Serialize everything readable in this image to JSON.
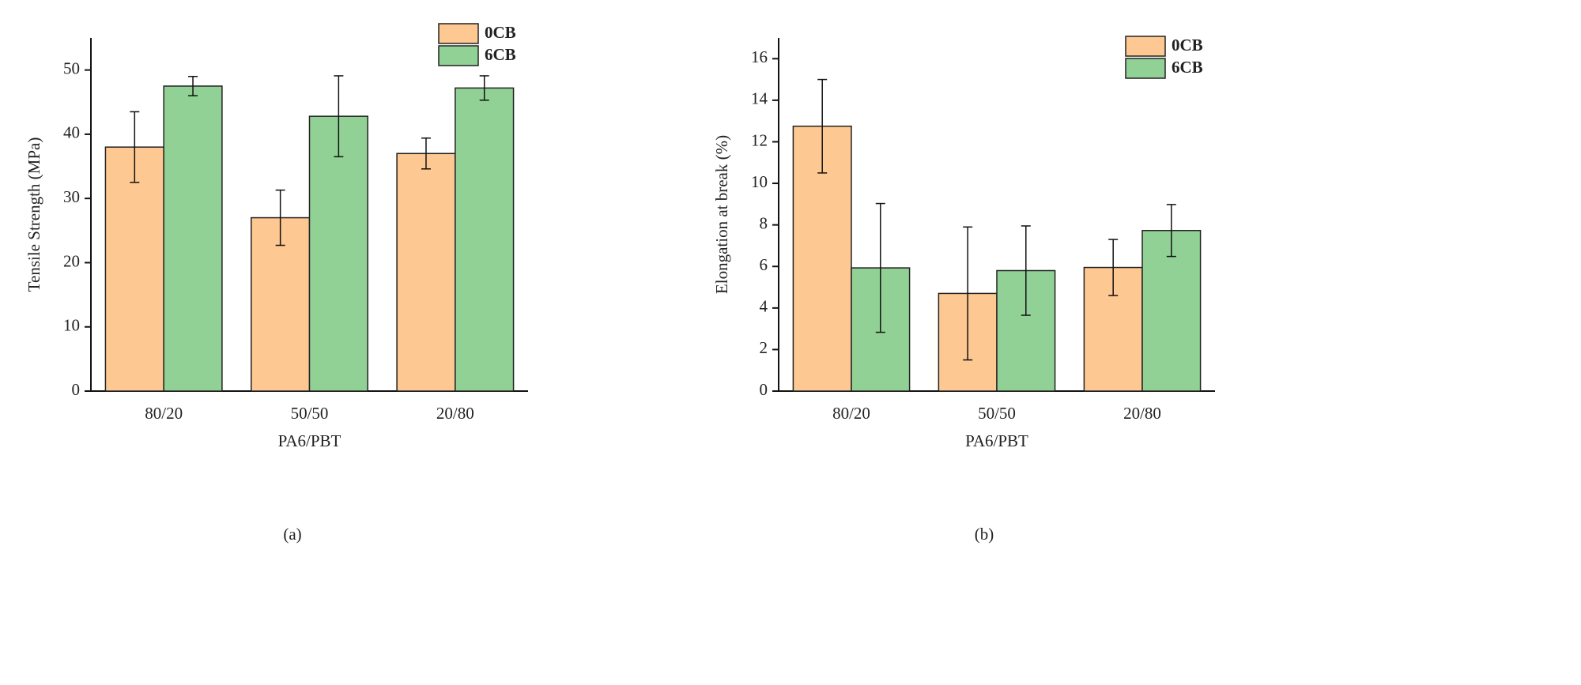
{
  "chart_data": [
    {
      "type": "bar",
      "panel_label": "(a)",
      "x_label": "PA6/PBT",
      "y_label": "Tensile Strength (MPa)",
      "categories": [
        "80/20",
        "50/50",
        "20/80"
      ],
      "series": [
        {
          "name": "0CB",
          "color": "#fdc891",
          "values": [
            38,
            27,
            37
          ],
          "errors": [
            5.5,
            4.3,
            2.4
          ]
        },
        {
          "name": "6CB",
          "color": "#92d196",
          "values": [
            47.5,
            42.8,
            47.2
          ],
          "errors": [
            1.5,
            6.3,
            1.9
          ]
        }
      ],
      "ylim": [
        0,
        55
      ],
      "yticks": [
        0,
        10,
        20,
        30,
        40,
        50
      ],
      "legend": "upper right"
    },
    {
      "type": "bar",
      "panel_label": "(b)",
      "x_label": "PA6/PBT",
      "y_label": "Elongation at break (%)",
      "categories": [
        "80/20",
        "50/50",
        "20/80"
      ],
      "series": [
        {
          "name": "0CB",
          "color": "#fdc891",
          "values": [
            12.75,
            4.7,
            5.95
          ],
          "errors": [
            2.25,
            3.2,
            1.35
          ]
        },
        {
          "name": "6CB",
          "color": "#92d196",
          "values": [
            5.93,
            5.8,
            7.73
          ],
          "errors": [
            3.1,
            2.15,
            1.25
          ]
        }
      ],
      "ylim": [
        0,
        17
      ],
      "yticks": [
        0,
        2,
        4,
        6,
        8,
        10,
        12,
        14,
        16
      ],
      "legend": "upper right"
    }
  ]
}
